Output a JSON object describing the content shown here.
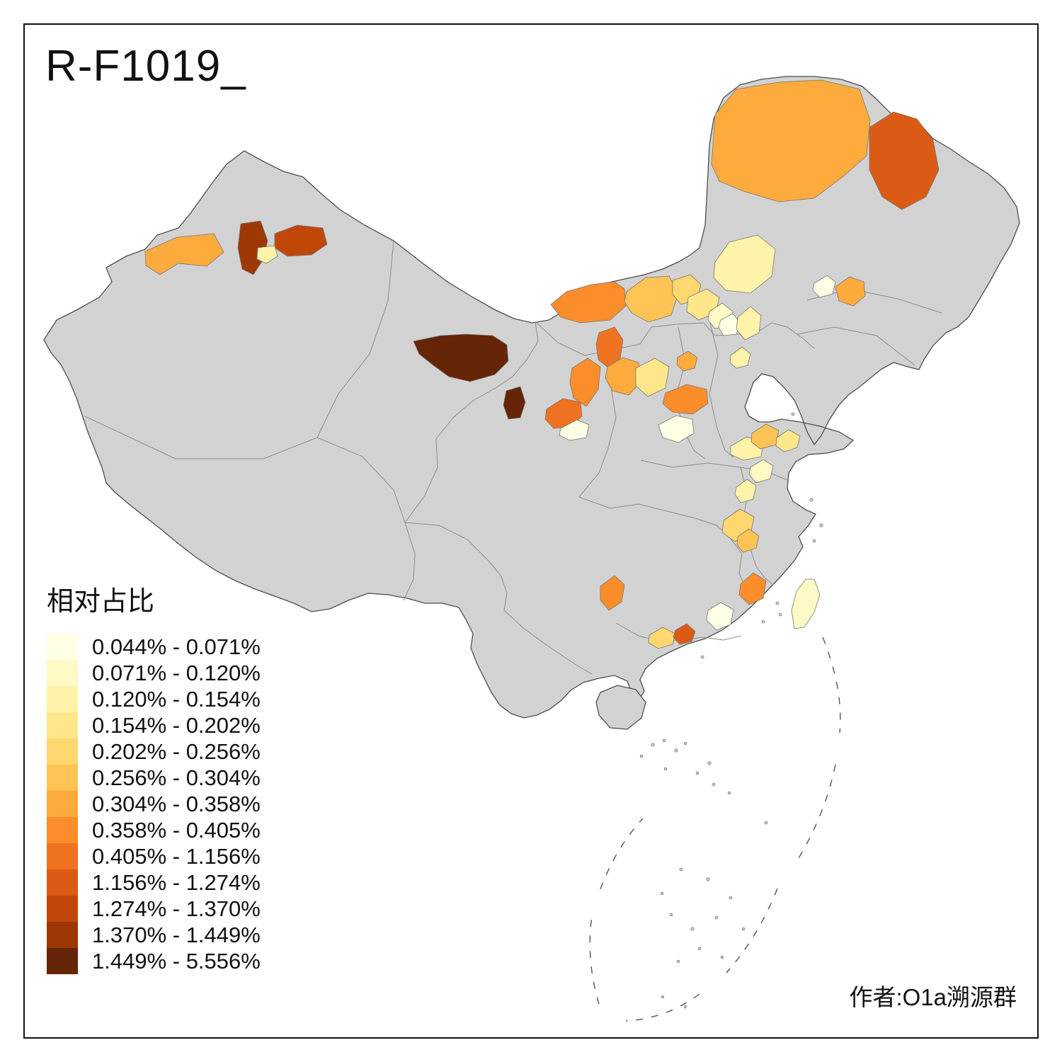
{
  "title": "R-F1019_",
  "attribution": "作者:O1a溯源群",
  "legend": {
    "title": "相对占比",
    "classes": [
      {
        "label": "0.044% - 0.071%",
        "color": "#FFFFE5"
      },
      {
        "label": "0.071% - 0.120%",
        "color": "#FFF9C6"
      },
      {
        "label": "0.120% - 0.154%",
        "color": "#FEF3A8"
      },
      {
        "label": "0.154% - 0.202%",
        "color": "#FEE78B"
      },
      {
        "label": "0.202% - 0.256%",
        "color": "#FED76E"
      },
      {
        "label": "0.256% - 0.304%",
        "color": "#FEC355"
      },
      {
        "label": "0.304% - 0.358%",
        "color": "#FDAB3D"
      },
      {
        "label": "0.358% - 0.405%",
        "color": "#FB8D2A"
      },
      {
        "label": "0.405% - 1.156%",
        "color": "#EF7220"
      },
      {
        "label": "1.156% - 1.274%",
        "color": "#DC5B14"
      },
      {
        "label": "1.274% - 1.370%",
        "color": "#C04708"
      },
      {
        "label": "1.370% - 1.449%",
        "color": "#9D3804"
      },
      {
        "label": "1.449% - 5.556%",
        "color": "#662506"
      }
    ]
  },
  "map": {
    "base_fill": "#D2D2D2",
    "country_border": "#4D4D4D",
    "province_border": "#8C8C8C",
    "regions": [
      {
        "id": "ili",
        "class_index": 6
      },
      {
        "id": "xj-dark-west",
        "class_index": 11
      },
      {
        "id": "xj-dark-east",
        "class_index": 10
      },
      {
        "id": "xj-pale",
        "class_index": 2
      },
      {
        "id": "hulunbuir",
        "class_index": 6
      },
      {
        "id": "heihe",
        "class_index": 9
      },
      {
        "id": "hetao",
        "class_index": 7
      },
      {
        "id": "baotou",
        "class_index": 5
      },
      {
        "id": "ulanqab",
        "class_index": 4
      },
      {
        "id": "xilingol",
        "class_index": 2
      },
      {
        "id": "zhangjiakou",
        "class_index": 3
      },
      {
        "id": "chengde",
        "class_index": 1
      },
      {
        "id": "beijing",
        "class_index": 0
      },
      {
        "id": "hebei-e",
        "class_index": 2
      },
      {
        "id": "tianjin",
        "class_index": 2
      },
      {
        "id": "jilin-orange",
        "class_index": 6
      },
      {
        "id": "jilin-white",
        "class_index": 0
      },
      {
        "id": "qinghai-dark",
        "class_index": 12
      },
      {
        "id": "gannan-dark",
        "class_index": 12
      },
      {
        "id": "wuwei",
        "class_index": 8
      },
      {
        "id": "lanzhou-n",
        "class_index": 7
      },
      {
        "id": "lanzhou",
        "class_index": 8
      },
      {
        "id": "yulin",
        "class_index": 6
      },
      {
        "id": "lvliang",
        "class_index": 3
      },
      {
        "id": "yanan",
        "class_index": 7
      },
      {
        "id": "linfen-white",
        "class_index": 0
      },
      {
        "id": "tianshui-white",
        "class_index": 0
      },
      {
        "id": "ordos",
        "class_index": 6
      },
      {
        "id": "henan-pale",
        "class_index": 2
      },
      {
        "id": "jinan",
        "class_index": 5
      },
      {
        "id": "linyi",
        "class_index": 3
      },
      {
        "id": "jiangsu-pale",
        "class_index": 1
      },
      {
        "id": "anhui-pale",
        "class_index": 2
      },
      {
        "id": "xiangyang",
        "class_index": 4
      },
      {
        "id": "suizhou",
        "class_index": 5
      },
      {
        "id": "qiandongnan",
        "class_index": 7
      },
      {
        "id": "longyan",
        "class_index": 7
      },
      {
        "id": "shaoguan-white",
        "class_index": 0
      },
      {
        "id": "yunfu",
        "class_index": 4
      },
      {
        "id": "shenzhen-dark",
        "class_index": 9
      },
      {
        "id": "taiwan",
        "class_index": 1
      }
    ]
  }
}
